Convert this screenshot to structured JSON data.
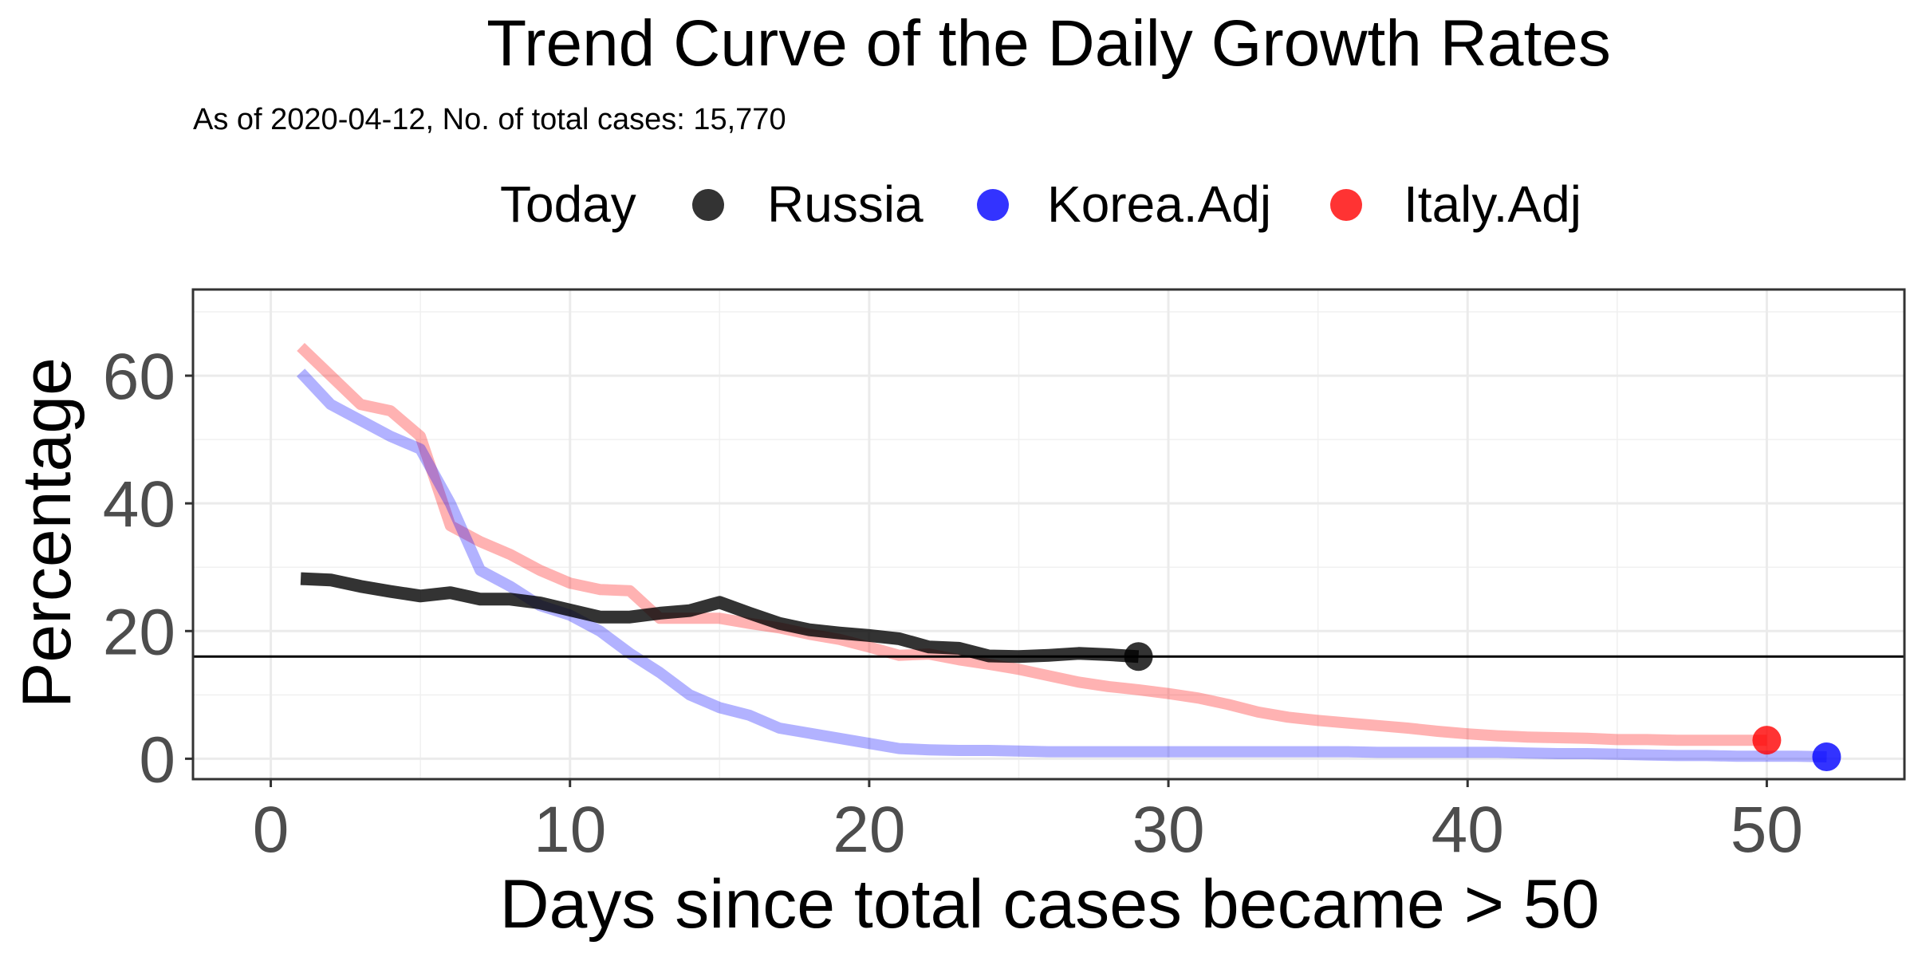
{
  "chart_data": {
    "type": "line",
    "title": "Trend Curve of the Daily Growth Rates",
    "subtitle": "As of 2020-04-12, No. of total cases: 15,770",
    "xlabel": "Days since total cases became > 50",
    "ylabel": "Percentage",
    "xlim": [
      -2.6,
      54.6
    ],
    "ylim": [
      -3.2,
      73.5
    ],
    "x_ticks": [
      "0",
      "10",
      "20",
      "30",
      "40",
      "50"
    ],
    "x_tick_values": [
      0,
      10,
      20,
      30,
      40,
      50
    ],
    "y_ticks": [
      "0",
      "20",
      "40",
      "60"
    ],
    "y_tick_values": [
      0,
      20,
      40,
      60
    ],
    "grid": true,
    "legend": {
      "title": "Today",
      "placement": "top",
      "entries": [
        "Russia",
        "Korea.Adj",
        "Italy.Adj"
      ]
    },
    "hline": {
      "y": 16,
      "color": "#000000"
    },
    "series": [
      {
        "name": "Italy.Adj",
        "color": "#ff0000",
        "x": [
          1,
          2,
          3,
          4,
          5,
          6,
          7,
          8,
          9,
          10,
          11,
          12,
          13,
          14,
          15,
          16,
          17,
          18,
          19,
          20,
          21,
          22,
          23,
          24,
          25,
          26,
          27,
          28,
          29,
          30,
          31,
          32,
          33,
          34,
          35,
          36,
          37,
          38,
          39,
          40,
          41,
          42,
          43,
          44,
          45,
          46,
          47,
          48,
          49,
          50
        ],
        "y": [
          64.5,
          60,
          55.5,
          54.5,
          50.5,
          36.5,
          34,
          32,
          29.5,
          27.5,
          26.5,
          26.3,
          22,
          22,
          22,
          21.2,
          20.5,
          19.5,
          18.7,
          17.5,
          16.2,
          16.4,
          15.5,
          14.8,
          14,
          13,
          12,
          11.3,
          10.8,
          10.2,
          9.5,
          8.5,
          7.3,
          6.5,
          6,
          5.6,
          5.2,
          4.8,
          4.3,
          3.9,
          3.6,
          3.4,
          3.3,
          3.2,
          3,
          3,
          2.9,
          2.9,
          2.9,
          2.9
        ],
        "end_point": {
          "x": 50,
          "y": 2.9
        }
      },
      {
        "name": "Korea.Adj",
        "color": "#0000ff",
        "x": [
          1,
          2,
          3,
          4,
          5,
          6,
          7,
          8,
          9,
          10,
          11,
          12,
          13,
          14,
          15,
          16,
          17,
          18,
          19,
          20,
          21,
          22,
          23,
          24,
          25,
          26,
          27,
          28,
          29,
          30,
          31,
          32,
          33,
          34,
          35,
          36,
          37,
          38,
          39,
          40,
          41,
          42,
          43,
          44,
          45,
          46,
          47,
          48,
          49,
          50,
          51,
          52
        ],
        "y": [
          60.5,
          55.5,
          53,
          50.5,
          48.5,
          40,
          29.5,
          27,
          24,
          22.5,
          20,
          16.5,
          13.5,
          10,
          8,
          6.8,
          4.8,
          4,
          3.2,
          2.4,
          1.6,
          1.4,
          1.3,
          1.3,
          1.2,
          1.1,
          1.1,
          1.1,
          1.1,
          1.1,
          1.1,
          1.1,
          1.1,
          1.1,
          1.1,
          1.1,
          1,
          1,
          1,
          1,
          1,
          0.9,
          0.8,
          0.8,
          0.7,
          0.6,
          0.5,
          0.5,
          0.4,
          0.4,
          0.4,
          0.3
        ],
        "end_point": {
          "x": 52,
          "y": 0.3
        }
      },
      {
        "name": "Russia",
        "color": "#000000",
        "x": [
          1,
          2,
          3,
          4,
          5,
          6,
          7,
          8,
          9,
          10,
          11,
          12,
          13,
          14,
          15,
          16,
          17,
          18,
          19,
          20,
          21,
          22,
          23,
          24,
          25,
          26,
          27,
          28,
          29
        ],
        "y": [
          28.2,
          28,
          27,
          26.2,
          25.5,
          26,
          25,
          25,
          24.4,
          23.3,
          22.2,
          22.2,
          22.8,
          23.2,
          24.5,
          22.8,
          21.2,
          20.2,
          19.7,
          19.3,
          18.8,
          17.5,
          17.3,
          16.1,
          16,
          16.2,
          16.5,
          16.3,
          16
        ],
        "end_point": {
          "x": 29,
          "y": 16
        }
      }
    ]
  }
}
